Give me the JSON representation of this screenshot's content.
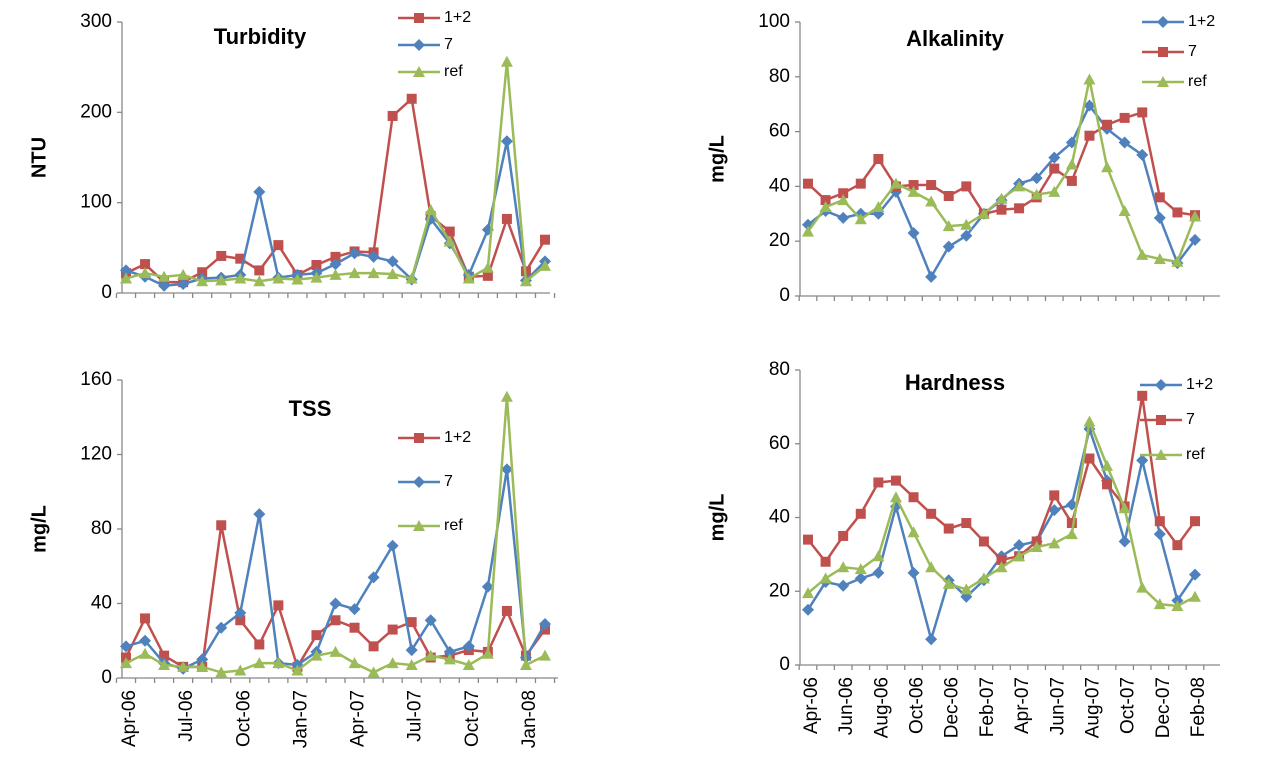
{
  "chart_data": [
    {
      "type": "line",
      "title": "Turbidity",
      "y_label": "NTU",
      "ylim": [
        0,
        300
      ],
      "yticks": [
        0,
        100,
        200,
        300
      ],
      "series": [
        {
          "name": "1+2",
          "color": "#C0504D",
          "marker": "square",
          "values": [
            22,
            32,
            12,
            12,
            23,
            41,
            38,
            25,
            53,
            20,
            31,
            40,
            46,
            45,
            196,
            215,
            85,
            68,
            18,
            19,
            82,
            24,
            59
          ]
        },
        {
          "name": "7",
          "color": "#4F81BD",
          "marker": "diamond",
          "values": [
            25,
            18,
            8,
            10,
            16,
            17,
            20,
            112,
            17,
            20,
            22,
            32,
            44,
            40,
            35,
            15,
            82,
            55,
            20,
            70,
            168,
            14,
            35
          ]
        },
        {
          "name": "ref",
          "color": "#9BBB59",
          "marker": "triangle",
          "values": [
            16,
            22,
            18,
            20,
            13,
            14,
            16,
            13,
            16,
            15,
            17,
            20,
            22,
            22,
            21,
            16,
            92,
            57,
            16,
            28,
            256,
            13,
            30
          ]
        }
      ]
    },
    {
      "type": "line",
      "title": "Alkalinity",
      "y_label": "mg/L",
      "ylim": [
        0,
        100
      ],
      "yticks": [
        0,
        20,
        40,
        60,
        80,
        100
      ],
      "series": [
        {
          "name": "1+2",
          "color": "#4F81BD",
          "marker": "diamond",
          "values": [
            26,
            31,
            28.5,
            30,
            30,
            38,
            23,
            7,
            18,
            22,
            30,
            35,
            41,
            43,
            50.5,
            56,
            69.5,
            61,
            56,
            51.5,
            28.5,
            12,
            20.5
          ]
        },
        {
          "name": "7",
          "color": "#C0504D",
          "marker": "square",
          "values": [
            41,
            35,
            37.5,
            41,
            50,
            40,
            40.5,
            40.5,
            36.5,
            40,
            30,
            31.5,
            32,
            36,
            46.5,
            42,
            58.5,
            62.5,
            65,
            67,
            36,
            30.5,
            29.5
          ]
        },
        {
          "name": "ref",
          "color": "#9BBB59",
          "marker": "triangle",
          "values": [
            23.5,
            32.5,
            35,
            28,
            32.5,
            41,
            38,
            34.5,
            25.5,
            26,
            30,
            35.5,
            40,
            37,
            38,
            48,
            79,
            47,
            31,
            15,
            13.5,
            12.5,
            29
          ]
        }
      ]
    },
    {
      "type": "line",
      "title": "TSS",
      "y_label": "mg/L",
      "ylim": [
        0,
        160
      ],
      "yticks": [
        0,
        40,
        80,
        120,
        160
      ],
      "categories": [
        "Apr-06",
        null,
        null,
        "Jul-06",
        null,
        null,
        "Oct-06",
        null,
        null,
        "Jan-07",
        null,
        null,
        "Apr-07",
        null,
        null,
        "Jul-07",
        null,
        null,
        "Oct-07",
        null,
        null,
        "Jan-08",
        null
      ],
      "series": [
        {
          "name": "1+2",
          "color": "#C0504D",
          "marker": "square",
          "values": [
            11,
            32,
            12,
            6,
            6,
            82,
            31,
            18,
            39,
            6,
            23,
            31,
            27,
            17,
            26,
            30,
            11,
            12,
            15,
            14,
            36,
            12,
            26
          ]
        },
        {
          "name": "7",
          "color": "#4F81BD",
          "marker": "diamond",
          "values": [
            17,
            20,
            8,
            5,
            10,
            27,
            35,
            88,
            8,
            7,
            14,
            40,
            37,
            54,
            71,
            15,
            31,
            14,
            17,
            49,
            112,
            11,
            29
          ]
        },
        {
          "name": "ref",
          "color": "#9BBB59",
          "marker": "triangle",
          "values": [
            8,
            13,
            7,
            6,
            6,
            3,
            4,
            8,
            8,
            4,
            12,
            14,
            8,
            3,
            8,
            7,
            12,
            10,
            7,
            13,
            151,
            7,
            12
          ]
        }
      ]
    },
    {
      "type": "line",
      "title": "Hardness",
      "y_label": "mg/L",
      "ylim": [
        0,
        80
      ],
      "yticks": [
        0,
        20,
        40,
        60,
        80
      ],
      "categories": [
        "Apr-06",
        null,
        "Jun-06",
        null,
        "Aug-06",
        null,
        "Oct-06",
        null,
        "Dec-06",
        null,
        "Feb-07",
        null,
        "Apr-07",
        null,
        "Jun-07",
        null,
        "Aug-07",
        null,
        "Oct-07",
        null,
        "Dec-07",
        null,
        "Feb-08"
      ],
      "series": [
        {
          "name": "1+2",
          "color": "#4F81BD",
          "marker": "diamond",
          "values": [
            15,
            22.5,
            21.5,
            23.5,
            25,
            43,
            25,
            7,
            23,
            18.5,
            23,
            29.5,
            32.5,
            33.5,
            42,
            43.5,
            64,
            50,
            33.5,
            55.5,
            35.5,
            17.5,
            24.5
          ]
        },
        {
          "name": "7",
          "color": "#C0504D",
          "marker": "square",
          "values": [
            34,
            28,
            35,
            41,
            49.5,
            50,
            45.5,
            41,
            37,
            38.5,
            33.5,
            28.5,
            29.5,
            33.5,
            46,
            38.5,
            56,
            49,
            43,
            73,
            39,
            32.5,
            39
          ]
        },
        {
          "name": "ref",
          "color": "#9BBB59",
          "marker": "triangle",
          "values": [
            19.5,
            23.5,
            26.5,
            26,
            29.5,
            45.5,
            36,
            26.5,
            22,
            20.5,
            23.5,
            26.5,
            29.5,
            32,
            33,
            35.5,
            66,
            54,
            42.5,
            21,
            16.5,
            16,
            18.5
          ]
        }
      ]
    }
  ]
}
